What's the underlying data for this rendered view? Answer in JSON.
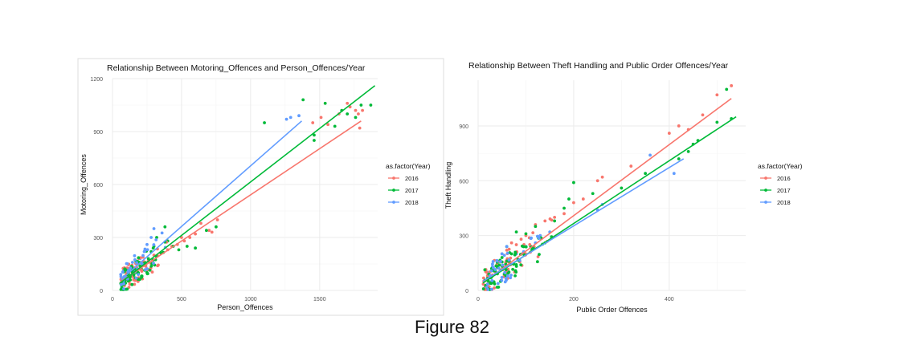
{
  "figure": {
    "caption": "Figure 82"
  },
  "colors": {
    "2016": "#F8766D",
    "2017": "#00BA38",
    "2018": "#619CFF",
    "grid": "#ebebeb",
    "text": "#333333",
    "tick": "#555555"
  },
  "chart_data": [
    {
      "type": "scatter",
      "title": "Relationship Between Motoring_Offences and Person_Offences/Year",
      "xlabel": "Person_Offences",
      "ylabel": "Motoring_Offences",
      "xlim": [
        0,
        1920
      ],
      "ylim": [
        0,
        1200
      ],
      "xticks": [
        0,
        500,
        1000,
        1500
      ],
      "yticks": [
        0,
        300,
        600,
        900,
        1200
      ],
      "grid": true,
      "legend": {
        "title": "as.factor(Year)",
        "position": "right",
        "entries": [
          "2016",
          "2017",
          "2018"
        ]
      },
      "series": [
        {
          "name": "2016",
          "fit": [
            [
              60,
              50
            ],
            [
              1800,
              960
            ]
          ],
          "points": [
            [
              1450,
              950
            ],
            [
              1510,
              980
            ],
            [
              1560,
              940
            ],
            [
              1640,
              1000
            ],
            [
              1700,
              1060
            ],
            [
              1720,
              1040
            ],
            [
              1760,
              1020
            ],
            [
              1780,
              1000
            ],
            [
              1810,
              1020
            ],
            [
              1790,
              920
            ],
            [
              640,
              380
            ],
            [
              700,
              340
            ],
            [
              720,
              330
            ],
            [
              760,
              400
            ],
            [
              600,
              320
            ],
            [
              560,
              300
            ],
            [
              520,
              280
            ],
            [
              500,
              300
            ],
            [
              470,
              260
            ],
            [
              430,
              250
            ],
            [
              400,
              230
            ],
            [
              350,
              210
            ],
            [
              300,
              200
            ],
            [
              260,
              170
            ],
            [
              230,
              150
            ],
            [
              200,
              120
            ],
            [
              180,
              100
            ],
            [
              150,
              90
            ],
            [
              120,
              80
            ],
            [
              100,
              60
            ]
          ]
        },
        {
          "name": "2017",
          "fit": [
            [
              60,
              45
            ],
            [
              1900,
              1160
            ]
          ],
          "points": [
            [
              1100,
              950
            ],
            [
              1380,
              1080
            ],
            [
              1460,
              880
            ],
            [
              1540,
              1060
            ],
            [
              1610,
              930
            ],
            [
              1660,
              1020
            ],
            [
              1700,
              1000
            ],
            [
              1760,
              980
            ],
            [
              1800,
              1050
            ],
            [
              1870,
              1050
            ],
            [
              1460,
              850
            ],
            [
              750,
              360
            ],
            [
              680,
              340
            ],
            [
              600,
              240
            ],
            [
              540,
              250
            ],
            [
              480,
              230
            ],
            [
              440,
              250
            ],
            [
              400,
              280
            ],
            [
              380,
              360
            ],
            [
              320,
              300
            ],
            [
              300,
              250
            ],
            [
              280,
              220
            ],
            [
              260,
              180
            ],
            [
              240,
              140
            ],
            [
              210,
              120
            ],
            [
              180,
              100
            ],
            [
              150,
              80
            ],
            [
              120,
              70
            ],
            [
              90,
              60
            ],
            [
              70,
              40
            ]
          ]
        },
        {
          "name": "2018",
          "fit": [
            [
              60,
              60
            ],
            [
              1370,
              960
            ]
          ],
          "points": [
            [
              1260,
              970
            ],
            [
              1290,
              980
            ],
            [
              1350,
              990
            ],
            [
              300,
              350
            ],
            [
              280,
              300
            ],
            [
              250,
              260
            ],
            [
              230,
              220
            ],
            [
              200,
              180
            ],
            [
              170,
              150
            ],
            [
              140,
              120
            ],
            [
              110,
              100
            ],
            [
              80,
              120
            ],
            [
              60,
              90
            ]
          ]
        }
      ]
    },
    {
      "type": "scatter",
      "title": "Relationship Between Theft Handling and Public Order Offences/Year",
      "xlabel": "Public Order Offences",
      "ylabel": "Theft Handling",
      "xlim": [
        0,
        560
      ],
      "ylim": [
        0,
        1150
      ],
      "xticks": [
        0,
        200,
        400
      ],
      "yticks": [
        0,
        300,
        600,
        900
      ],
      "grid": true,
      "legend": {
        "title": "as.factor(Year)",
        "position": "right",
        "entries": [
          "2016",
          "2017",
          "2018"
        ]
      },
      "series": [
        {
          "name": "2016",
          "fit": [
            [
              10,
              40
            ],
            [
              530,
              1050
            ]
          ],
          "points": [
            [
              530,
              1120
            ],
            [
              500,
              1070
            ],
            [
              470,
              960
            ],
            [
              440,
              880
            ],
            [
              420,
              900
            ],
            [
              400,
              860
            ],
            [
              320,
              680
            ],
            [
              260,
              620
            ],
            [
              250,
              600
            ],
            [
              220,
              500
            ],
            [
              200,
              480
            ],
            [
              180,
              420
            ],
            [
              160,
              400
            ],
            [
              140,
              380
            ],
            [
              120,
              360
            ],
            [
              100,
              300
            ],
            [
              90,
              280
            ],
            [
              80,
              250
            ],
            [
              70,
              260
            ],
            [
              60,
              220
            ],
            [
              50,
              200
            ],
            [
              40,
              160
            ],
            [
              30,
              120
            ],
            [
              20,
              80
            ]
          ]
        },
        {
          "name": "2017",
          "fit": [
            [
              10,
              40
            ],
            [
              540,
              950
            ]
          ],
          "points": [
            [
              520,
              1100
            ],
            [
              530,
              940
            ],
            [
              500,
              920
            ],
            [
              460,
              820
            ],
            [
              450,
              800
            ],
            [
              440,
              760
            ],
            [
              420,
              720
            ],
            [
              350,
              640
            ],
            [
              300,
              560
            ],
            [
              240,
              530
            ],
            [
              200,
              590
            ],
            [
              190,
              500
            ],
            [
              180,
              450
            ],
            [
              160,
              380
            ],
            [
              140,
              260
            ],
            [
              120,
              350
            ],
            [
              110,
              240
            ],
            [
              100,
              310
            ],
            [
              80,
              320
            ],
            [
              70,
              200
            ],
            [
              60,
              240
            ],
            [
              50,
              180
            ],
            [
              40,
              150
            ],
            [
              30,
              110
            ],
            [
              20,
              60
            ]
          ]
        },
        {
          "name": "2018",
          "fit": [
            [
              10,
              50
            ],
            [
              430,
              720
            ]
          ],
          "points": [
            [
              410,
              640
            ],
            [
              360,
              740
            ],
            [
              260,
              470
            ],
            [
              250,
              440
            ],
            [
              150,
              320
            ],
            [
              130,
              300
            ],
            [
              120,
              260
            ],
            [
              100,
              240
            ],
            [
              80,
              200
            ],
            [
              60,
              240
            ],
            [
              50,
              200
            ],
            [
              40,
              160
            ],
            [
              30,
              130
            ],
            [
              20,
              100
            ]
          ]
        }
      ]
    }
  ]
}
